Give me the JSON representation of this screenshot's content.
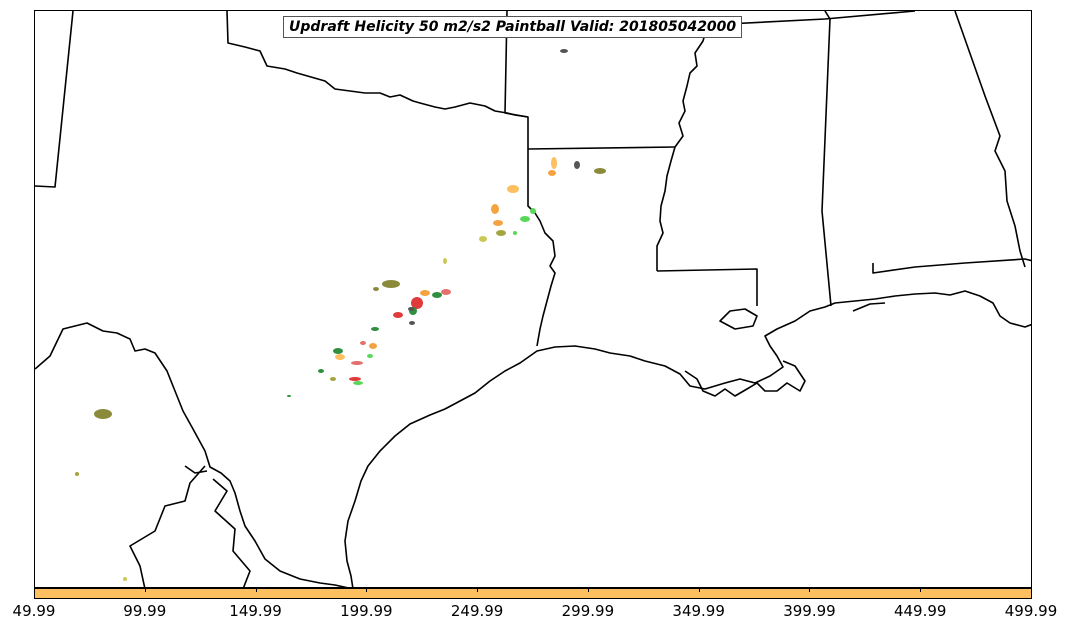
{
  "title": "Updraft Helicity 50 m2/s2 Paintball Valid: 201805042000",
  "colorbar": {
    "color": "#fdbf5f",
    "ticks": [
      "49.99",
      "99.99",
      "149.99",
      "199.99",
      "249.99",
      "299.99",
      "349.99",
      "399.99",
      "449.99",
      "499.99"
    ]
  },
  "colors": {
    "coastline": "#000000",
    "paintball_palette": [
      "#f4a340",
      "#fdbf5f",
      "#e03b3b",
      "#2f8f3f",
      "#57d957",
      "#8b8a3a",
      "#a4a53e",
      "#555555",
      "#c9c955",
      "#e36f6f"
    ]
  }
}
